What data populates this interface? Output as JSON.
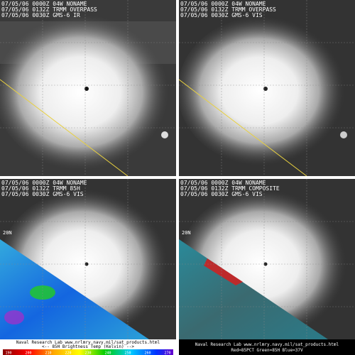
{
  "panels": [
    {
      "header": [
        "07/05/06 0000Z 04W NONAME",
        "07/05/06 0132Z TRMM OVERPASS",
        "07/05/06 0030Z GMS-6 IR"
      ]
    },
    {
      "header": [
        "07/05/06 0000Z 04W NONAME",
        "07/05/06 0132Z TRMM OVERPASS",
        "07/05/06 0030Z GMS-6 VIS"
      ]
    },
    {
      "header": [
        "07/05/06 0000Z 04W NONAME",
        "07/05/06 0132Z TRMM 85H",
        "07/05/06 0030Z GMS-6 VIS"
      ],
      "grid_label": "20N",
      "footer": [
        "Naval Research Lab  www.nrlmry.navy.mil/sat_products.html",
        "<--  85H Brightness Temp (Kelvin)  -->"
      ],
      "colorbar_labels": [
        "190",
        "200",
        "210",
        "220",
        "230",
        "240",
        "250",
        "260",
        "270"
      ]
    },
    {
      "header": [
        "07/05/06 0000Z 04W NONAME",
        "07/05/06 0132Z TRMM COMPOSITE",
        "07/05/06 0030Z GMS-6 VIS"
      ],
      "grid_label": "20N",
      "footer": [
        "Naval Research Lab  www.nrlmry.navy.mil/sat_products.html",
        "Red=85PCT  Green=85H  Blue=37V"
      ]
    }
  ]
}
